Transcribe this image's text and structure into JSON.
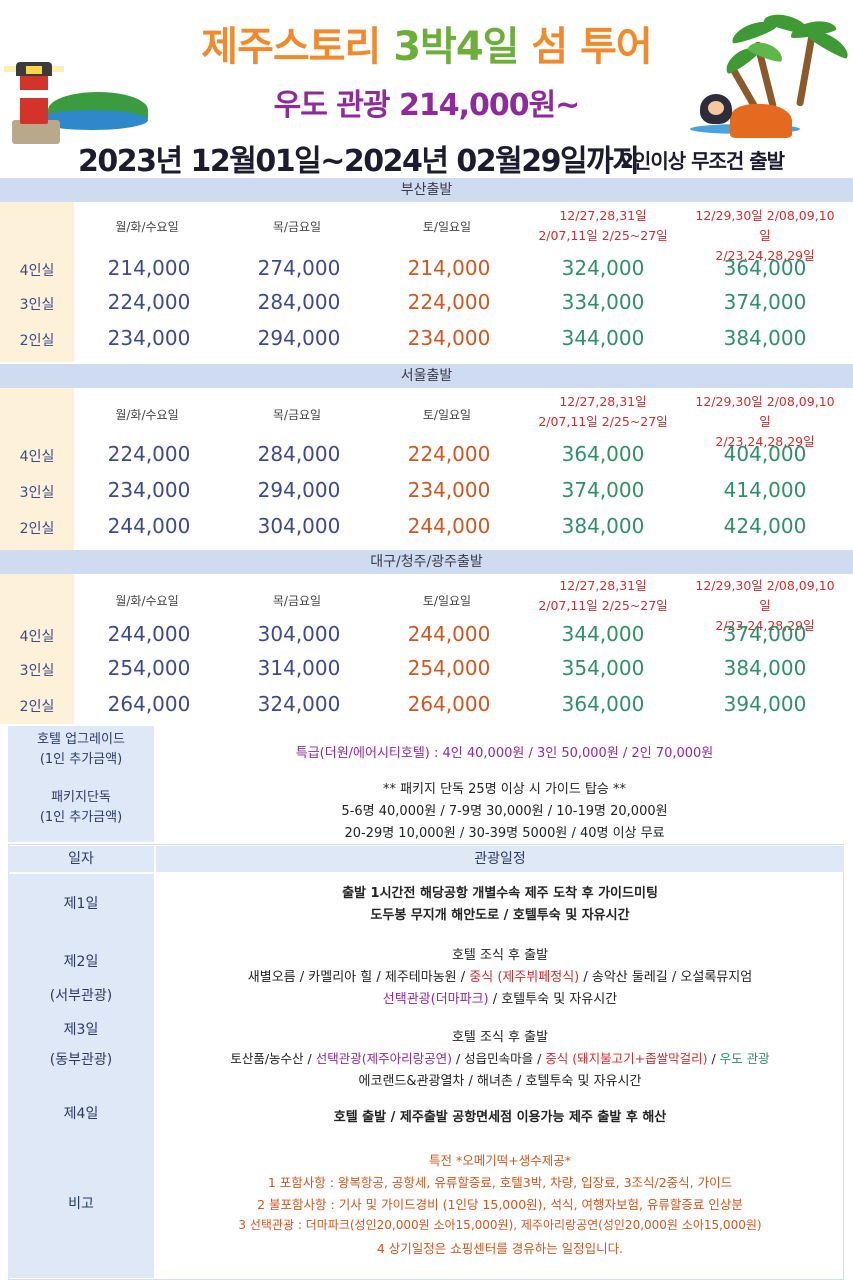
{
  "header": {
    "title_part1": "제주스토리 ",
    "title_part2": "3박4일",
    "title_part3": " 섬 투어",
    "subtitle": "우도 관광 214,000원~",
    "date_range": "2023년 12월01일~2024년 02월29일까지",
    "depart_note": "2인이상 무조건 출발"
  },
  "columns": {
    "weekday": "월/화/수요일",
    "thufri": "목/금요일",
    "weekend": "토/일요일",
    "peak1_line1": "12/27,28,31일",
    "peak1_line2": "2/07,11일  2/25~27일",
    "peak2_line1": "12/29,30일  2/08,09,10일",
    "peak2_line2": "2/23,24,28,29일"
  },
  "sections": [
    {
      "title": "부산출발",
      "rows": [
        {
          "label": "4인실",
          "prices": [
            "214,000",
            "274,000",
            "214,000",
            "324,000",
            "364,000"
          ]
        },
        {
          "label": "3인실",
          "prices": [
            "224,000",
            "284,000",
            "224,000",
            "334,000",
            "374,000"
          ]
        },
        {
          "label": "2인실",
          "prices": [
            "234,000",
            "294,000",
            "234,000",
            "344,000",
            "384,000"
          ]
        }
      ]
    },
    {
      "title": "서울출발",
      "rows": [
        {
          "label": "4인실",
          "prices": [
            "224,000",
            "284,000",
            "224,000",
            "364,000",
            "404,000"
          ]
        },
        {
          "label": "3인실",
          "prices": [
            "234,000",
            "294,000",
            "234,000",
            "374,000",
            "414,000"
          ]
        },
        {
          "label": "2인실",
          "prices": [
            "244,000",
            "304,000",
            "244,000",
            "384,000",
            "424,000"
          ]
        }
      ]
    },
    {
      "title": "대구/청주/광주출발",
      "rows": [
        {
          "label": "4인실",
          "prices": [
            "244,000",
            "304,000",
            "244,000",
            "344,000",
            "374,000"
          ]
        },
        {
          "label": "3인실",
          "prices": [
            "254,000",
            "314,000",
            "254,000",
            "354,000",
            "384,000"
          ]
        },
        {
          "label": "2인실",
          "prices": [
            "264,000",
            "324,000",
            "264,000",
            "364,000",
            "394,000"
          ]
        }
      ]
    }
  ],
  "extra": {
    "hotel_label1": "호텔 업그레이드",
    "hotel_label2": "(1인 추가금액)",
    "hotel_text": "특급(더원/에어시티호텔) : 4인 40,000원 / 3인 50,000원 / 2인 70,000원",
    "package_label1": "패키지단독",
    "package_label2": "(1인 추가금액)",
    "package_line1": "** 패키지 단독 25명 이상 시 가이드 탑승 **",
    "package_line2": "5-6명 40,000원 / 7-9명 30,000원 / 10-19명 20,000원",
    "package_line3": "20-29명 10,000원 / 30-39명 5000원 / 40명 이상 무료"
  },
  "itinerary": {
    "head_day": "일자",
    "head_schedule": "관광일정",
    "day1_label": "제1일",
    "day1_line1": "출발 1시간전 해당공항 개별수속 제주 도착 후 가이드미팅",
    "day1_line2": "도두봉 무지개 해안도로 / 호텔투숙 및 자유시간",
    "day2_label1": "제2일",
    "day2_label2": "(서부관광)",
    "day2_line1": "호텔 조식 후 출발",
    "day2_line2a": "새별오름 / 카멜리아 힐 / 제주테마농원 / ",
    "day2_line2b": "중식 (제주뷔페정식)",
    "day2_line2c": " / 송악산 둘레길 / 오설록뮤지엄",
    "day2_line3a": "선택관광(더마파크)",
    "day2_line3b": " / 호텔투숙 및 자유시간",
    "day3_label1": "제3일",
    "day3_label2": "(동부관광)",
    "day3_line1": "호텔 조식 후 출발",
    "day3_line2a": "토산품/농수산 / ",
    "day3_line2b": "선택관광(제주아리랑공연)",
    "day3_line2c": " / 성읍민속마을 / ",
    "day3_line2d": "중식 (돼지불고기+좁쌀막걸리)",
    "day3_line2e": " / ",
    "day3_line2f": "우도 관광",
    "day3_line3": "에코랜드&관광열차 / 해녀촌 / 호텔투숙 및 자유시간",
    "day4_label": "제4일",
    "day4_line1": "호텔 출발 / 제주출발 공항면세점 이용가능 제주 출발 후 해산",
    "remarks_label": "비고",
    "remark0": "특전 *오메기떡+생수제공*",
    "remark1": "1 포함사항 : 왕복항공, 공항세, 유류할증료, 호텔3박, 차량, 입장료, 3조식/2중식, 가이드",
    "remark2": "2 불포함사항 : 기사 및 가이드경비 (1인당 15,000원), 석식, 여행자보험, 유류할증료 인상분",
    "remark3": "3 선택관광 : 더마파크(성인20,000원 소아15,000원), 제주아리랑공연(성인20,000원 소아15,000원)",
    "remark4": "4 상기일정은 쇼핑센터를 경유하는 일정입니다."
  },
  "colors": {
    "title_orange": "#f08a2c",
    "title_green": "#6cae3a",
    "subtitle_purple": "#8e2a9c",
    "price_blue": "#3d4a8c",
    "price_orange": "#d2561f",
    "price_green": "#2f8f6a",
    "peak_red": "#cc2f2f",
    "section_header": "#cfdbf0",
    "side_panel": "#fdf1d9"
  },
  "icons": [
    "lighthouse-illustration",
    "palm-tree-illustration",
    "haenyeo-illustration"
  ]
}
